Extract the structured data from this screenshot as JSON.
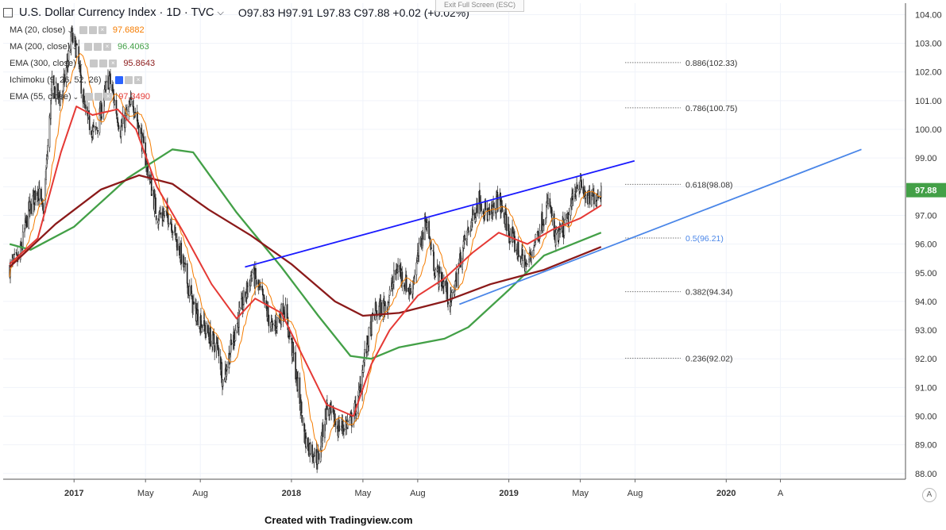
{
  "header": {
    "title": "U.S. Dollar Currency Index · 1D · TVC",
    "ohlc": "O97.83  H97.91  L97.83  C97.88  +0.02 (+0.02%)"
  },
  "fullscreen_button": "Exit Full Screen (ESC)",
  "indicators": [
    {
      "label": "MA (20, close)",
      "value": "97.6882",
      "color": "#f57c00"
    },
    {
      "label": "MA (200, close)",
      "value": "96.4063",
      "color": "#43a047"
    },
    {
      "label": "EMA (300, close)",
      "value": "95.8643",
      "color": "#8b1a1a"
    },
    {
      "label": "Ichimoku (9, 26, 52, 26)",
      "value": "",
      "color": "#888888"
    },
    {
      "label": "EMA (55, close)",
      "value": "97.3490",
      "color": "#e53935"
    }
  ],
  "footer": "Created with Tradingview.com",
  "chart_data": {
    "type": "candlestick",
    "title": "U.S. Dollar Currency Index",
    "interval": "1D",
    "source": "TVC",
    "last_price": 97.88,
    "ylim": [
      87.8,
      104.4
    ],
    "y_ticks": [
      88,
      89,
      90,
      91,
      92,
      93,
      94,
      95,
      96,
      97,
      98,
      99,
      100,
      101,
      102,
      103,
      104
    ],
    "x_ticks": [
      "2017",
      "May",
      "Aug",
      "2018",
      "May",
      "Aug",
      "2019",
      "May",
      "Aug",
      "2020",
      "A"
    ],
    "grid": true,
    "legend_position": "top-left",
    "price_path": [
      [
        "2016-09-15",
        95.2
      ],
      [
        "2016-10-01",
        95.5
      ],
      [
        "2016-10-15",
        97.0
      ],
      [
        "2016-11-01",
        98.0
      ],
      [
        "2016-11-10",
        97.0
      ],
      [
        "2016-11-25",
        101.5
      ],
      [
        "2016-12-10",
        101.0
      ],
      [
        "2016-12-28",
        103.2
      ],
      [
        "2017-01-05",
        102.8
      ],
      [
        "2017-01-20",
        100.5
      ],
      [
        "2017-02-05",
        99.8
      ],
      [
        "2017-03-01",
        101.8
      ],
      [
        "2017-03-20",
        100.0
      ],
      [
        "2017-04-10",
        101.0
      ],
      [
        "2017-05-01",
        99.0
      ],
      [
        "2017-05-20",
        97.0
      ],
      [
        "2017-06-10",
        97.0
      ],
      [
        "2017-07-01",
        95.5
      ],
      [
        "2017-07-20",
        93.8
      ],
      [
        "2017-08-10",
        93.0
      ],
      [
        "2017-09-01",
        92.3
      ],
      [
        "2017-09-08",
        91.2
      ],
      [
        "2017-10-01",
        93.2
      ],
      [
        "2017-10-27",
        95.0
      ],
      [
        "2017-11-10",
        94.3
      ],
      [
        "2017-11-30",
        93.0
      ],
      [
        "2017-12-20",
        93.8
      ],
      [
        "2018-01-05",
        92.0
      ],
      [
        "2018-01-25",
        89.1
      ],
      [
        "2018-02-15",
        88.5
      ],
      [
        "2018-03-01",
        90.3
      ],
      [
        "2018-03-20",
        89.6
      ],
      [
        "2018-04-10",
        89.8
      ],
      [
        "2018-04-23",
        90.5
      ],
      [
        "2018-05-01",
        91.8
      ],
      [
        "2018-05-20",
        93.6
      ],
      [
        "2018-06-10",
        93.9
      ],
      [
        "2018-06-28",
        95.2
      ],
      [
        "2018-07-20",
        94.3
      ],
      [
        "2018-08-15",
        96.9
      ],
      [
        "2018-08-30",
        95.1
      ],
      [
        "2018-09-15",
        94.6
      ],
      [
        "2018-09-25",
        93.9
      ],
      [
        "2018-10-15",
        95.8
      ],
      [
        "2018-11-12",
        97.6
      ],
      [
        "2018-11-30",
        96.9
      ],
      [
        "2018-12-14",
        97.6
      ],
      [
        "2019-01-05",
        96.2
      ],
      [
        "2019-01-31",
        95.2
      ],
      [
        "2019-02-20",
        96.5
      ],
      [
        "2019-03-10",
        97.5
      ],
      [
        "2019-03-20",
        96.1
      ],
      [
        "2019-04-10",
        96.8
      ],
      [
        "2019-04-26",
        98.2
      ],
      [
        "2019-05-15",
        97.5
      ],
      [
        "2019-05-31",
        97.8
      ],
      [
        "2019-06-05",
        97.88
      ]
    ],
    "series": [
      {
        "name": "MA (20, close)",
        "color": "#f57c00",
        "last": 97.6882
      },
      {
        "name": "MA (200, close)",
        "color": "#43a047",
        "last": 96.4063,
        "path": [
          [
            "2016-09-15",
            96.0
          ],
          [
            "2016-10-20",
            95.8
          ],
          [
            "2017-01-01",
            96.6
          ],
          [
            "2017-04-01",
            98.3
          ],
          [
            "2017-06-15",
            99.3
          ],
          [
            "2017-07-20",
            99.2
          ],
          [
            "2017-10-01",
            97.1
          ],
          [
            "2017-12-15",
            95.2
          ],
          [
            "2018-02-15",
            93.5
          ],
          [
            "2018-04-10",
            92.1
          ],
          [
            "2018-05-15",
            92.0
          ],
          [
            "2018-07-01",
            92.4
          ],
          [
            "2018-09-15",
            92.7
          ],
          [
            "2018-10-25",
            93.1
          ],
          [
            "2019-01-01",
            94.4
          ],
          [
            "2019-03-01",
            95.6
          ],
          [
            "2019-06-05",
            96.4
          ]
        ]
      },
      {
        "name": "EMA (300, close)",
        "color": "#8b1a1a",
        "last": 95.8643,
        "path": [
          [
            "2016-09-15",
            95.2
          ],
          [
            "2016-12-01",
            96.7
          ],
          [
            "2017-02-15",
            97.9
          ],
          [
            "2017-04-20",
            98.4
          ],
          [
            "2017-06-15",
            98.1
          ],
          [
            "2017-08-15",
            97.2
          ],
          [
            "2017-10-25",
            96.3
          ],
          [
            "2018-01-01",
            95.3
          ],
          [
            "2018-03-15",
            94.0
          ],
          [
            "2018-05-01",
            93.5
          ],
          [
            "2018-07-01",
            93.6
          ],
          [
            "2018-09-15",
            94.0
          ],
          [
            "2018-12-01",
            94.6
          ],
          [
            "2019-03-01",
            95.1
          ],
          [
            "2019-06-05",
            95.9
          ]
        ]
      },
      {
        "name": "EMA (55, close)",
        "color": "#e53935",
        "last": 97.349,
        "path": [
          [
            "2016-09-15",
            95.3
          ],
          [
            "2016-11-01",
            96.2
          ],
          [
            "2016-12-10",
            99.2
          ],
          [
            "2017-01-05",
            100.8
          ],
          [
            "2017-02-01",
            100.5
          ],
          [
            "2017-03-15",
            100.7
          ],
          [
            "2017-04-15",
            100.0
          ],
          [
            "2017-05-20",
            98.0
          ],
          [
            "2017-07-01",
            96.5
          ],
          [
            "2017-08-20",
            94.6
          ],
          [
            "2017-10-01",
            93.4
          ],
          [
            "2017-11-01",
            94.1
          ],
          [
            "2017-12-15",
            93.6
          ],
          [
            "2018-01-15",
            92.3
          ],
          [
            "2018-03-01",
            90.4
          ],
          [
            "2018-04-15",
            90.0
          ],
          [
            "2018-05-15",
            91.8
          ],
          [
            "2018-06-15",
            93.0
          ],
          [
            "2018-08-01",
            94.2
          ],
          [
            "2018-09-15",
            94.8
          ],
          [
            "2018-11-01",
            95.7
          ],
          [
            "2018-12-15",
            96.4
          ],
          [
            "2019-02-01",
            96.0
          ],
          [
            "2019-03-15",
            96.5
          ],
          [
            "2019-05-01",
            96.9
          ],
          [
            "2019-06-05",
            97.35
          ]
        ]
      }
    ],
    "trendlines": [
      {
        "name": "upper",
        "color": "#1a1aff",
        "from": [
          "2017-10-15",
          95.2
        ],
        "to": [
          "2019-07-31",
          98.9
        ]
      },
      {
        "name": "lower",
        "color": "#4a86e8",
        "from": [
          "2018-10-10",
          93.9
        ],
        "to": [
          "2020-08-15",
          99.3
        ]
      }
    ],
    "fibonacci": [
      {
        "label": "0.886(102.33)",
        "price": 102.33
      },
      {
        "label": "0.786(100.75)",
        "price": 100.75
      },
      {
        "label": "0.618(98.08)",
        "price": 98.08
      },
      {
        "label": "0.5(96.21)",
        "price": 96.21
      },
      {
        "label": "0.382(94.34)",
        "price": 94.34
      },
      {
        "label": "0.236(92.02)",
        "price": 92.02
      }
    ]
  }
}
